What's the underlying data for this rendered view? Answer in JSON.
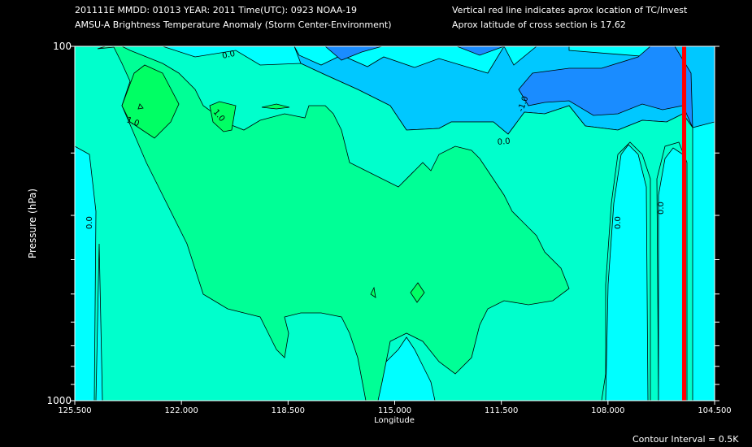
{
  "header": {
    "line1": "201111E  MMDD: 01013 YEAR: 2011 Time(UTC): 0923 NOAA-19",
    "line2": "AMSU-A Brightness Temperature Anomaly (Storm Center-Environment)",
    "right1": "Vertical red line indicates aprox location of TC/Invest",
    "right2": "Aprox latitude of cross section is 17.62"
  },
  "footer": {
    "contour_interval": "Contour Interval = 0.5K"
  },
  "chart_data": {
    "type": "contour",
    "title": "AMSU-A Brightness Temperature Anomaly (Storm Center-Environment)",
    "xlabel": "Longitude",
    "ylabel": "Pressure (hPa)",
    "x_ticks": [
      "125.500",
      "122.000",
      "118.500",
      "115.000",
      "111.500",
      "108.000",
      "104.500"
    ],
    "y_ticks": [
      "100",
      "1000"
    ],
    "xlim": [
      125.5,
      104.5
    ],
    "ylim": [
      1000,
      100
    ],
    "y_scale": "log",
    "contour_interval_K": 0.5,
    "contour_labels": [
      "0.0",
      "0.0",
      "0.0",
      "0.0",
      "0.0",
      "1.0",
      "1.0",
      "-1.0"
    ],
    "storm_marker": {
      "longitude": 105.5,
      "color": "#ff0000"
    },
    "colors": {
      "below_minus_1": "#1a8cff",
      "minus_1_to_minus_05": "#00c8ff",
      "minus_05_to_0": "#00ffff",
      "0_to_05": "#00ffcc",
      "05_to_1": "#00ff96",
      "above_1": "#00ff64"
    }
  }
}
